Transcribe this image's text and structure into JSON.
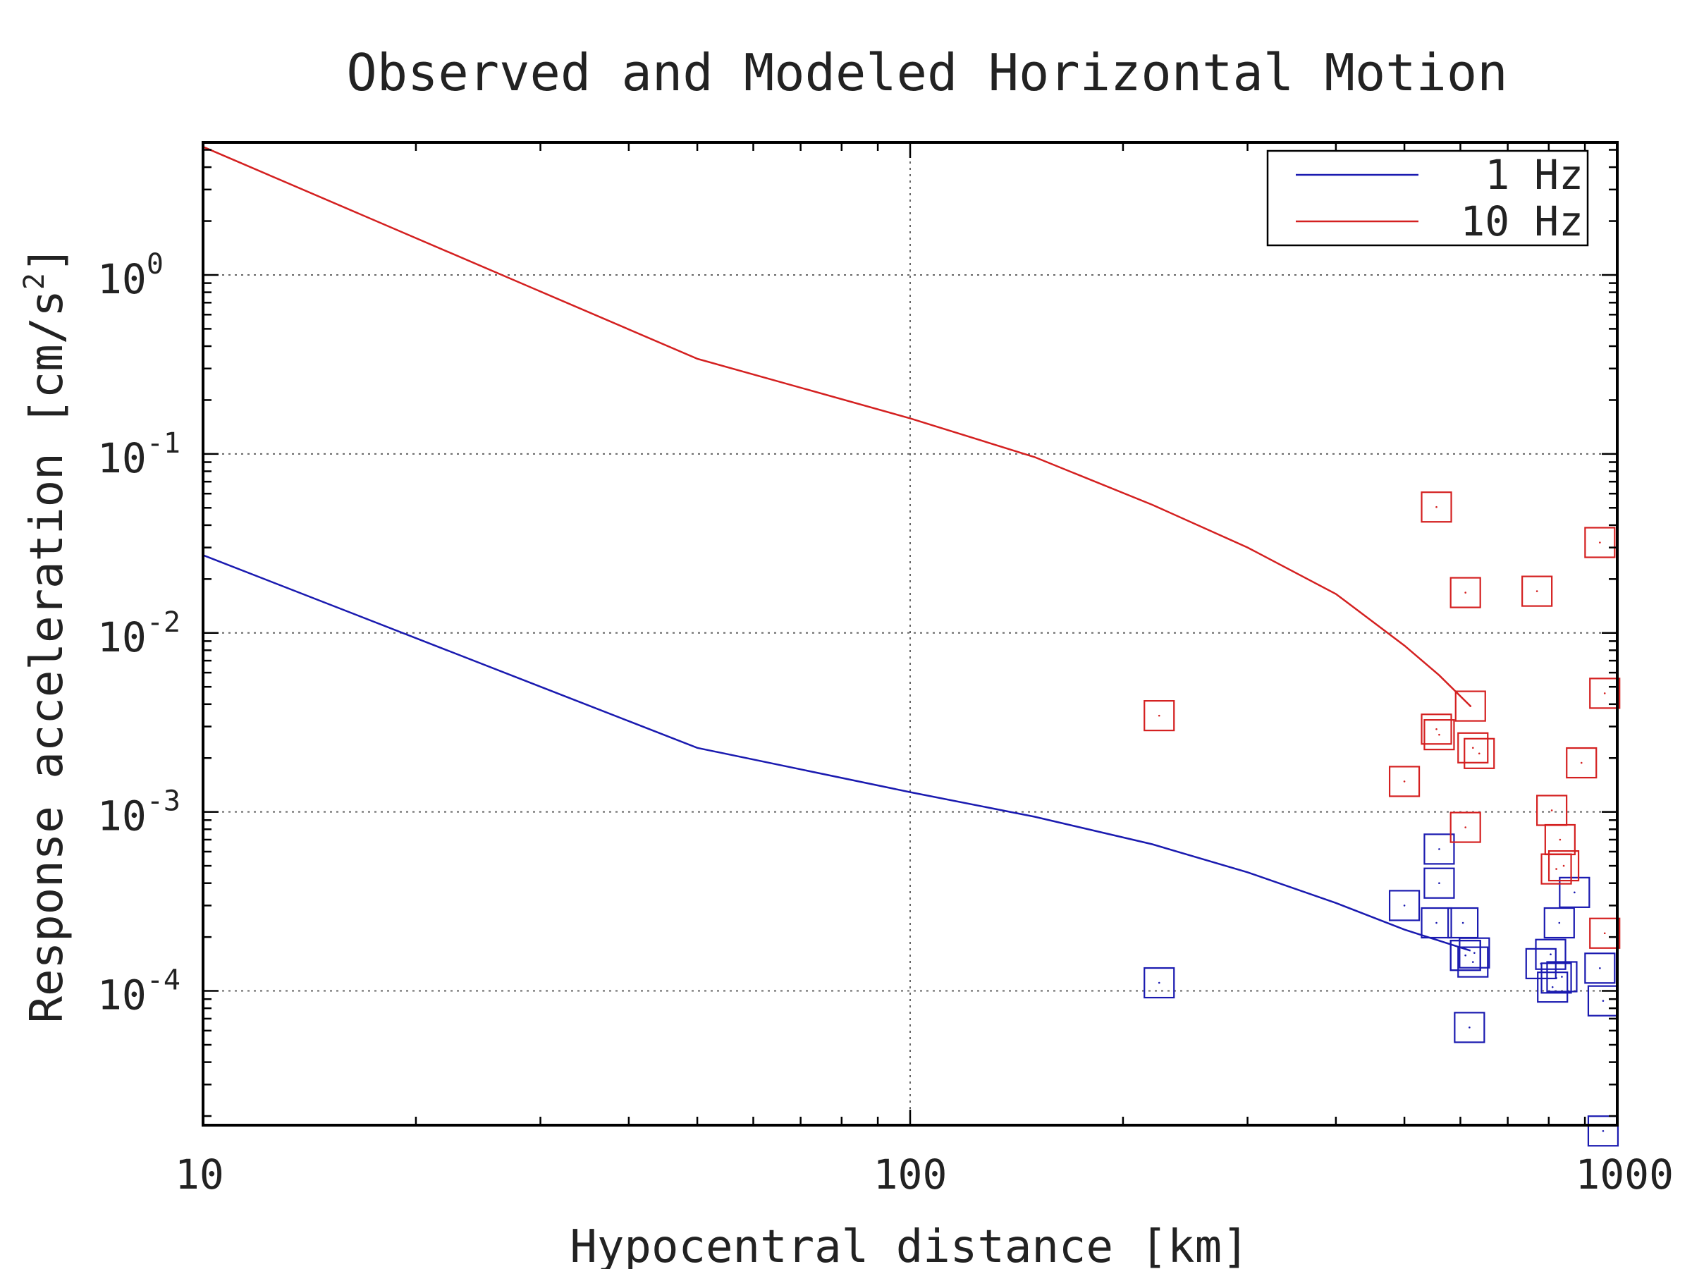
{
  "chart_data": {
    "type": "scatter",
    "title": "Observed and Modeled Horizontal Motion",
    "xlabel": "Hypocentral distance [km]",
    "ylabel": "Response acceleration [cm/s",
    "ylabel_sup": "2",
    "ylabel_tail": "]",
    "x_scale": "log",
    "y_scale": "log",
    "xlim": [
      10,
      1000
    ],
    "ylim": [
      1.778e-05,
      5.5
    ],
    "x_ticks": [
      {
        "value": 10,
        "label": "10"
      },
      {
        "value": 100,
        "label": "100"
      },
      {
        "value": 1000,
        "label": "1000"
      }
    ],
    "y_ticks": [
      {
        "value": 1,
        "base": "10",
        "exp": "0"
      },
      {
        "value": 0.1,
        "base": "10",
        "exp": "-1"
      },
      {
        "value": 0.01,
        "base": "10",
        "exp": "-2"
      },
      {
        "value": 0.001,
        "base": "10",
        "exp": "-3"
      },
      {
        "value": 0.0001,
        "base": "10",
        "exp": "-4"
      }
    ],
    "grid": true,
    "legend": {
      "position": "top-right",
      "entries": [
        {
          "label": "1 Hz",
          "color": "#1a1ab0"
        },
        {
          "label": "10 Hz",
          "color": "#d42020"
        }
      ]
    },
    "lines": [
      {
        "name": "1 Hz",
        "color": "#1a1ab0",
        "x": [
          10,
          50,
          100,
          150,
          220,
          300,
          400,
          500,
          600,
          620
        ],
        "y": [
          0.0272,
          0.00228,
          0.00129,
          0.00094,
          0.00066,
          0.00046,
          0.00031,
          0.00022,
          0.000175,
          0.000168
        ]
      },
      {
        "name": "10 Hz",
        "color": "#d42020",
        "x": [
          10,
          50,
          100,
          150,
          220,
          300,
          400,
          500,
          560,
          620
        ],
        "y": [
          5.2,
          0.34,
          0.158,
          0.096,
          0.052,
          0.03,
          0.0165,
          0.0085,
          0.0058,
          0.0039
        ]
      }
    ],
    "series": [
      {
        "name": "1 Hz",
        "color": "#1a1ab0",
        "x": [
          225,
          500,
          555,
          560,
          560,
          605,
          610,
          610,
          618,
          625,
          628,
          780,
          805,
          810,
          820,
          828,
          835,
          870,
          945,
          955
        ],
        "y": [
          0.000111,
          0.0003,
          0.00024,
          0.00062,
          0.0004,
          0.00024,
          0.000158,
          0.000158,
          6.25e-05,
          0.000145,
          0.000163,
          0.000142,
          0.00016,
          0.000105,
          0.000118,
          0.00024,
          0.00012,
          0.000355,
          0.000134,
          8.8e-05
        ]
      },
      {
        "name": "10 Hz",
        "color": "#d42020",
        "x": [
          225,
          500,
          555,
          555,
          560,
          610,
          610,
          620,
          625,
          638,
          770,
          808,
          820,
          830,
          840,
          890,
          945,
          960,
          960
        ],
        "y": [
          0.00345,
          0.00148,
          0.0505,
          0.0029,
          0.0027,
          0.0168,
          0.00082,
          0.0039,
          0.00228,
          0.00212,
          0.0171,
          0.00102,
          0.00048,
          0.0007,
          0.0005,
          0.00188,
          0.032,
          0.0046,
          0.00021
        ]
      },
      {
        "name": "1 Hz",
        "color": "#1a1ab0",
        "x": [
          955
        ],
        "y": [
          1.65e-05
        ]
      }
    ]
  }
}
